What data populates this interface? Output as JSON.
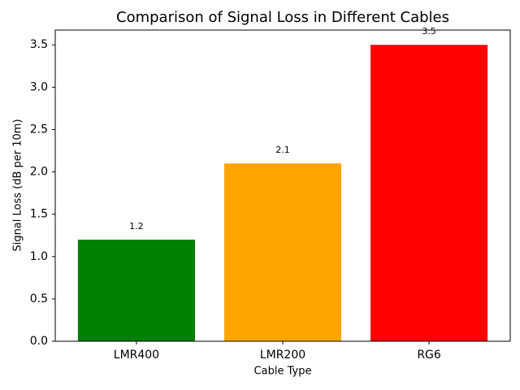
{
  "chart_data": {
    "type": "bar",
    "title": "Comparison of Signal Loss in Different Cables",
    "x_label": "Cable Type",
    "y_label": "Signal Loss (dB per 10m)",
    "categories": [
      "LMR400",
      "LMR200",
      "RG6"
    ],
    "values": [
      1.2,
      2.1,
      3.5
    ],
    "colors": [
      "#008000",
      "#ffa500",
      "#ff0000"
    ],
    "ylim": [
      0,
      3.675
    ],
    "yticks": [
      {
        "value": 0,
        "label": "0.0"
      },
      0.5,
      {
        "value": 1,
        "label": "1.0"
      },
      1.5,
      {
        "value": 2,
        "label": "2.0"
      },
      2.5,
      {
        "value": 3,
        "label": "3.0"
      },
      3.5
    ],
    "grid": false
  }
}
